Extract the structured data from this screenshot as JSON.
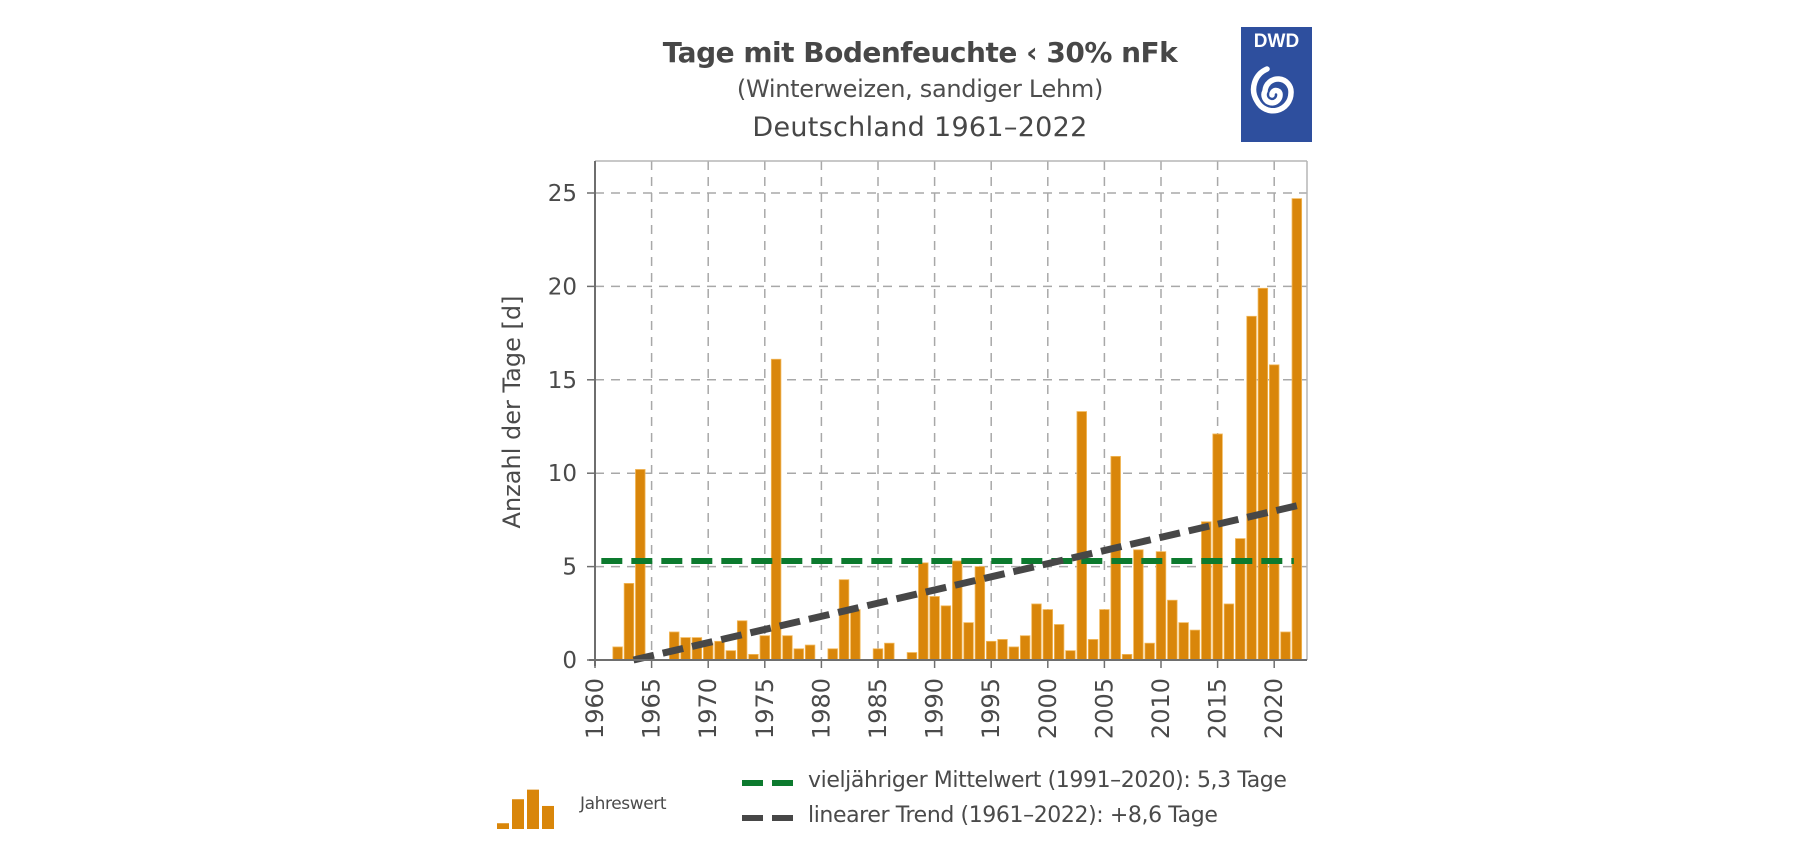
{
  "colors": {
    "bar": "#d9860a",
    "bar_edge": "#f2b85a",
    "mean_line": "#0c7a2e",
    "trend_line": "#474747",
    "grid": "#a8a8a8",
    "axis": "#6e6e6e",
    "logo_bg": "#2e4f9e"
  },
  "logo": {
    "text": "DWD",
    "icon": "dwd-spiral-logo"
  },
  "chart_data": {
    "type": "bar",
    "title": "Tage mit Bodenfeuchte ‹ 30% nFk",
    "subtitle": "(Winterweizen, sandiger Lehm)",
    "subtitle2": "Deutschland 1961–2022",
    "xlabel": "",
    "ylabel": "Anzahl der Tage [d]",
    "xlim": [
      1960,
      2023
    ],
    "ylim": [
      0,
      26.5
    ],
    "xticks": [
      1960,
      1965,
      1970,
      1975,
      1980,
      1985,
      1990,
      1995,
      2000,
      2005,
      2010,
      2015,
      2020
    ],
    "xtick_labels": [
      "1960",
      "1965",
      "1970",
      "1975",
      "1980",
      "1985",
      "1990",
      "1995",
      "2000",
      "2005",
      "2010",
      "2015",
      "2020"
    ],
    "yticks": [
      0,
      5,
      10,
      15,
      20,
      25
    ],
    "ytick_labels": [
      "0",
      "5",
      "10",
      "15",
      "20",
      "25"
    ],
    "grid": true,
    "years": [
      1961,
      1962,
      1963,
      1964,
      1965,
      1966,
      1967,
      1968,
      1969,
      1970,
      1971,
      1972,
      1973,
      1974,
      1975,
      1976,
      1977,
      1978,
      1979,
      1980,
      1981,
      1982,
      1983,
      1984,
      1985,
      1986,
      1987,
      1988,
      1989,
      1990,
      1991,
      1992,
      1993,
      1994,
      1995,
      1996,
      1997,
      1998,
      1999,
      2000,
      2001,
      2002,
      2003,
      2004,
      2005,
      2006,
      2007,
      2008,
      2009,
      2010,
      2011,
      2012,
      2013,
      2014,
      2015,
      2016,
      2017,
      2018,
      2019,
      2020,
      2021,
      2022
    ],
    "values": [
      0,
      0.7,
      4.1,
      10.2,
      0,
      0,
      1.5,
      1.2,
      1.2,
      0.9,
      1.0,
      0.5,
      2.1,
      0.3,
      1.3,
      16.1,
      1.3,
      0.6,
      0.8,
      0,
      0.6,
      4.3,
      2.7,
      0,
      0.6,
      0.9,
      0,
      0.4,
      5.2,
      3.4,
      2.9,
      5.3,
      2.0,
      5.0,
      1.0,
      1.1,
      0.7,
      1.3,
      3.0,
      2.7,
      1.9,
      0.5,
      13.3,
      1.1,
      2.7,
      10.9,
      0.3,
      5.9,
      0.9,
      5.8,
      3.2,
      2.0,
      1.6,
      7.4,
      12.1,
      3.0,
      6.5,
      18.4,
      19.9,
      15.8,
      1.5,
      24.7
    ],
    "mean_line": {
      "value": 5.3,
      "from_year": 1961,
      "to_year": 2022
    },
    "trend_line": {
      "start": [
        1963.4,
        0.0
      ],
      "end": [
        2022.3,
        8.3
      ]
    },
    "legend": {
      "placement": "bottom",
      "bars_label": "Jahreswert",
      "mean_label": "vieljähriger Mittelwert  (1991–2020): 5,3 Tage",
      "trend_label": "linearer Trend (1961–2022): +8,6 Tage"
    }
  }
}
